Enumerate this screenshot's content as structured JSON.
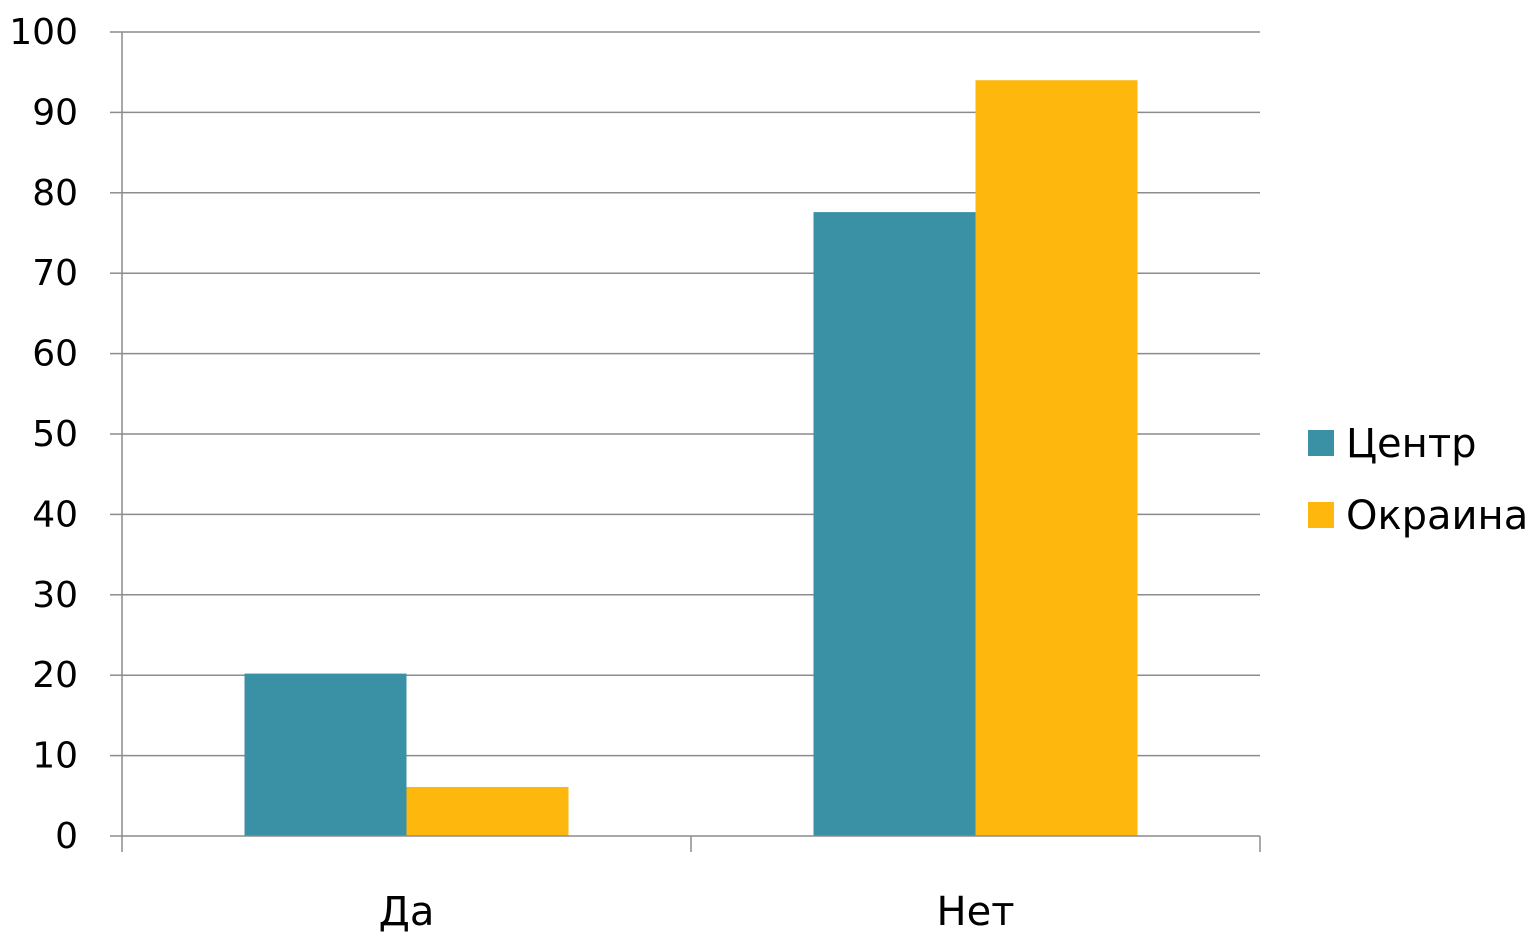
{
  "chart_data": {
    "type": "bar",
    "categories": [
      "Да",
      "Нет"
    ],
    "series": [
      {
        "name": "Центр",
        "values": [
          20.2,
          77.6
        ],
        "color": "#3A91A6"
      },
      {
        "name": "Окраина",
        "values": [
          6.1,
          94
        ],
        "color": "#FDB70D"
      }
    ],
    "ylim": [
      0,
      100
    ],
    "yticks": [
      0,
      10,
      20,
      30,
      40,
      50,
      60,
      70,
      80,
      90,
      100
    ],
    "grid": true,
    "legend_position": "right",
    "title": "",
    "xlabel": "",
    "ylabel": ""
  }
}
